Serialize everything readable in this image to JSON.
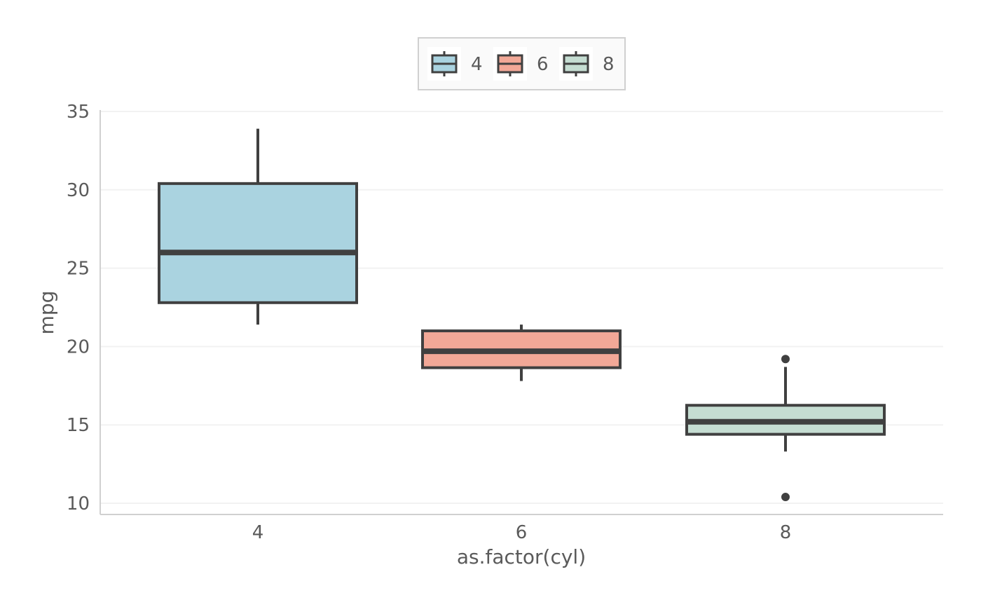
{
  "chart_data": {
    "type": "boxplot",
    "xlabel": "as.factor(cyl)",
    "ylabel": "mpg",
    "categories": [
      "4",
      "6",
      "8"
    ],
    "yticks": [
      10,
      15,
      20,
      25,
      30,
      35
    ],
    "ylim": [
      9.3,
      35.1
    ],
    "grid": "horizontal",
    "legend": {
      "position": "top",
      "entries": [
        "4",
        "6",
        "8"
      ]
    },
    "colors": {
      "4": "#aad3e0",
      "6": "#f2a897",
      "8": "#c5ddd2",
      "outline": "#404040",
      "grid": "#f2f2f2",
      "axis": "#d0d0d0",
      "text": "#5a5a5a"
    },
    "boxes": [
      {
        "category": "4",
        "whisker_low": 21.4,
        "q1": 22.8,
        "median": 26.0,
        "q3": 30.4,
        "whisker_high": 33.9,
        "outliers": []
      },
      {
        "category": "6",
        "whisker_low": 17.8,
        "q1": 18.65,
        "median": 19.7,
        "q3": 21.0,
        "whisker_high": 21.4,
        "outliers": []
      },
      {
        "category": "8",
        "whisker_low": 13.3,
        "q1": 14.4,
        "median": 15.2,
        "q3": 16.25,
        "whisker_high": 18.7,
        "outliers": [
          10.4,
          19.2
        ]
      }
    ]
  }
}
